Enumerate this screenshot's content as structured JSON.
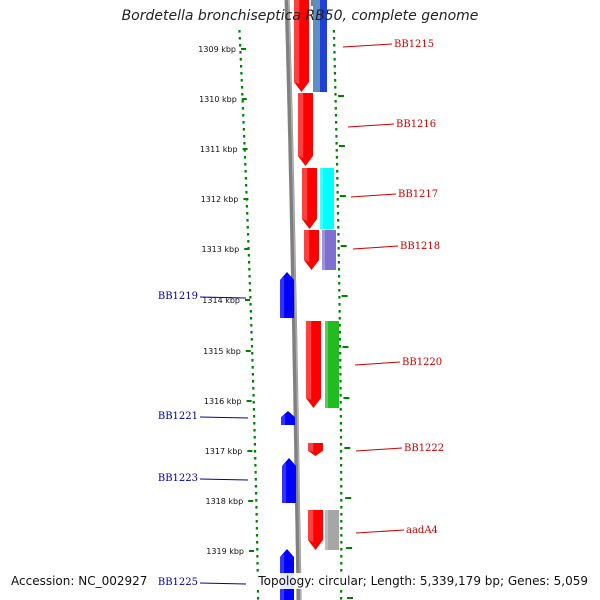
{
  "title": "Bordetella bronchiseptica RB50, complete genome",
  "footer": {
    "accession": "Accession: NC_002927",
    "summary": "Topology: circular; Length: 5,339,179 bp; Genes: 5,059"
  },
  "colors": {
    "background": "#ffffff",
    "backbone": "#808080",
    "ticks": "#008000",
    "forward_gene": "#ff0000",
    "reverse_gene": "#0000ff",
    "forward_label": "#cc0000",
    "reverse_label": "#0000aa"
  },
  "scale_labels": [
    "1309 kbp",
    "1310 kbp",
    "1311 kbp",
    "1312 kbp",
    "1313 kbp",
    "1314 kbp",
    "1315 kbp",
    "1316 kbp",
    "1317 kbp",
    "1318 kbp",
    "1319 kbp"
  ],
  "forward_genes": [
    {
      "label": "BB1215",
      "cog_color": "#1f3fd6",
      "cog_color2": "#5f8fbf",
      "cog_shown": true
    },
    {
      "label": "BB1216",
      "cog_shown": false
    },
    {
      "label": "BB1217",
      "cog_color": "#00ffff",
      "cog_shown": true
    },
    {
      "label": "BB1218",
      "cog_color": "#7f6fcf",
      "cog_shown": true
    },
    {
      "label": "BB1220",
      "cog_color": "#22bb22",
      "cog_shown": true
    },
    {
      "label": "BB1222",
      "cog_shown": false
    },
    {
      "label": "aadA4",
      "cog_color": "#a6a6a6",
      "cog_shown": true
    }
  ],
  "reverse_genes": [
    {
      "label": "BB1219"
    },
    {
      "label": "BB1221"
    },
    {
      "label": "BB1223"
    },
    {
      "label": "BB1225"
    }
  ]
}
